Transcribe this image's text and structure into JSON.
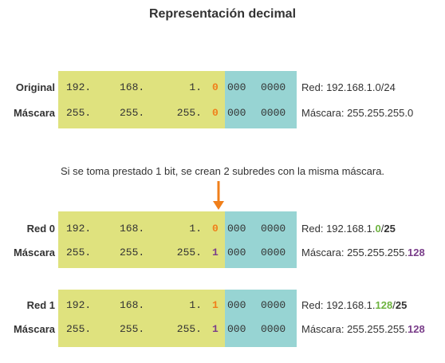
{
  "title": "Representación decimal",
  "colors": {
    "network": "#dfe27e",
    "host": "#97d4d3",
    "bit_orange": "#f07f1a",
    "bit_purple": "#7a3e8a",
    "green": "#6db33f"
  },
  "original": {
    "rows": [
      {
        "label": "Original",
        "o1": "192.",
        "o2": "168.",
        "o3": "1.",
        "bit": "0",
        "h1": "000",
        "h2": "0000"
      },
      {
        "label": "Máscara",
        "o1": "255.",
        "o2": "255.",
        "o3": "255.",
        "bit": "0",
        "h1": "000",
        "h2": "0000"
      }
    ],
    "desc_net": "Red: 192.168.1.0/24",
    "desc_mask": "Máscara: 255.255.255.0"
  },
  "note": "Si se toma prestado 1 bit, se crean 2 subredes con la misma máscara.",
  "arrow_icon": "down-arrow-icon",
  "subnets": [
    {
      "rows": [
        {
          "label": "Red 0",
          "o1": "192.",
          "o2": "168.",
          "o3": "1.",
          "bit": "0",
          "h1": "000",
          "h2": "0000"
        },
        {
          "label": "Máscara",
          "o1": "255.",
          "o2": "255.",
          "o3": "255.",
          "bit": "1",
          "h1": "000",
          "h2": "0000"
        }
      ],
      "net_prefix": "Red: 192.168.1.",
      "net_hl": "0",
      "net_slash": "/",
      "net_cidr": "25",
      "mask_prefix": "Máscara: 255.255.255.",
      "mask_hl": "128"
    },
    {
      "rows": [
        {
          "label": "Red 1",
          "o1": "192.",
          "o2": "168.",
          "o3": "1.",
          "bit": "1",
          "h1": "000",
          "h2": "0000"
        },
        {
          "label": "Máscara",
          "o1": "255.",
          "o2": "255.",
          "o3": "255.",
          "bit": "1",
          "h1": "000",
          "h2": "0000"
        }
      ],
      "net_prefix": "Red: 192.168.1.",
      "net_hl": "128",
      "net_slash": "/",
      "net_cidr": "25",
      "mask_prefix": "Máscara: 255.255.255.",
      "mask_hl": "128"
    }
  ]
}
